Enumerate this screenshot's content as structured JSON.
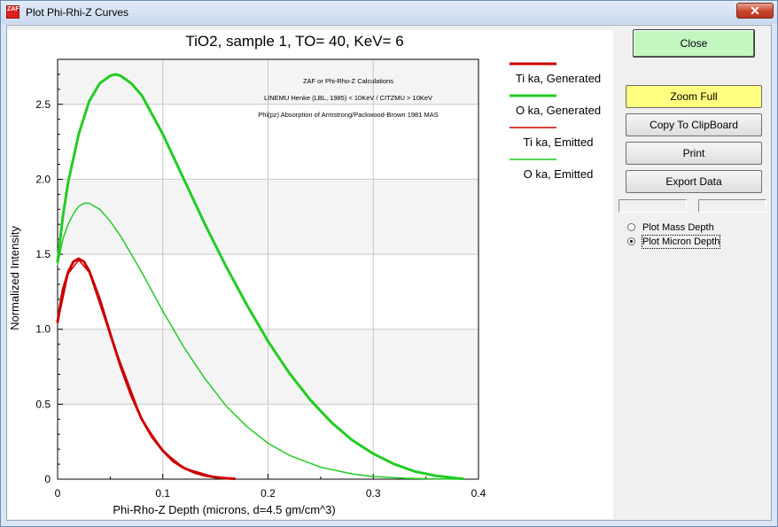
{
  "window": {
    "title": "Plot Phi-Rhi-Z Curves",
    "icon_label": "ZAF",
    "close_glyph": "✕"
  },
  "buttons": {
    "close": "Close",
    "zoom_full": "Zoom Full",
    "copy": "Copy To ClipBoard",
    "print": "Print",
    "export": "Export Data"
  },
  "options": {
    "mass_depth": "Plot Mass Depth",
    "micron_depth": "Plot Micron Depth",
    "selected": "micron_depth"
  },
  "colors": {
    "red": "#cc0000",
    "green": "#22cc22"
  },
  "chart_data": {
    "type": "line",
    "title": "TiO2, sample 1, TO= 40, KeV= 6",
    "xlabel": "Phi-Rho-Z Depth (microns, d=4.5 gm/cm^3)",
    "ylabel": "Normalized Intensity",
    "xlim": [
      0,
      0.4
    ],
    "ylim": [
      0,
      2.8
    ],
    "xticks": [
      "0",
      "0.1",
      "0.2",
      "0.3",
      "0.4"
    ],
    "yticks": [
      "0",
      "0.5",
      "1.0",
      "1.5",
      "2.0",
      "2.5"
    ],
    "grid": true,
    "annotations": [
      "ZAF or Phi-Rho-Z Calculations",
      "LINEMU   Henke (LBL, 1985) < 10KeV / CITZMU > 10KeV",
      "Phi(pz) Absorption of Armstrong/Packwood-Brown 1981 MAS"
    ],
    "legend_position": "right",
    "series": [
      {
        "name": "Ti ka, Generated",
        "color": "#cc0000",
        "width": 3,
        "x": [
          0,
          0.005,
          0.01,
          0.015,
          0.02,
          0.025,
          0.03,
          0.04,
          0.05,
          0.06,
          0.07,
          0.08,
          0.09,
          0.1,
          0.11,
          0.12,
          0.13,
          0.14,
          0.15,
          0.16,
          0.168
        ],
        "y": [
          1.05,
          1.26,
          1.38,
          1.45,
          1.47,
          1.45,
          1.39,
          1.2,
          0.97,
          0.75,
          0.56,
          0.4,
          0.28,
          0.19,
          0.12,
          0.075,
          0.045,
          0.025,
          0.013,
          0.006,
          0.003
        ]
      },
      {
        "name": "O  ka, Generated",
        "color": "#22cc22",
        "width": 3,
        "x": [
          0,
          0.005,
          0.01,
          0.02,
          0.03,
          0.04,
          0.05,
          0.055,
          0.06,
          0.07,
          0.08,
          0.1,
          0.12,
          0.14,
          0.16,
          0.18,
          0.2,
          0.22,
          0.24,
          0.26,
          0.28,
          0.3,
          0.32,
          0.34,
          0.36,
          0.38,
          0.385
        ],
        "y": [
          1.45,
          1.75,
          1.98,
          2.3,
          2.52,
          2.64,
          2.69,
          2.7,
          2.69,
          2.64,
          2.56,
          2.3,
          2.0,
          1.7,
          1.42,
          1.16,
          0.92,
          0.71,
          0.53,
          0.38,
          0.26,
          0.17,
          0.1,
          0.05,
          0.022,
          0.006,
          0.003
        ]
      },
      {
        "name": "Ti ka, Emitted",
        "color": "#cc0000",
        "width": 1.5,
        "x": [
          0,
          0.01,
          0.02,
          0.03,
          0.05,
          0.08,
          0.1,
          0.12,
          0.15,
          0.168
        ],
        "y": [
          1.04,
          1.37,
          1.46,
          1.38,
          0.96,
          0.4,
          0.19,
          0.075,
          0.013,
          0.003
        ]
      },
      {
        "name": "O  ka, Emitted",
        "color": "#22cc22",
        "width": 1.5,
        "x": [
          0,
          0.005,
          0.01,
          0.015,
          0.02,
          0.025,
          0.03,
          0.04,
          0.05,
          0.06,
          0.08,
          0.1,
          0.12,
          0.14,
          0.16,
          0.18,
          0.2,
          0.22,
          0.25,
          0.28,
          0.3,
          0.33,
          0.35,
          0.385
        ],
        "y": [
          1.43,
          1.6,
          1.7,
          1.77,
          1.82,
          1.84,
          1.84,
          1.8,
          1.72,
          1.62,
          1.38,
          1.12,
          0.88,
          0.67,
          0.49,
          0.35,
          0.24,
          0.16,
          0.08,
          0.035,
          0.018,
          0.006,
          0.003,
          0.0
        ]
      }
    ]
  }
}
